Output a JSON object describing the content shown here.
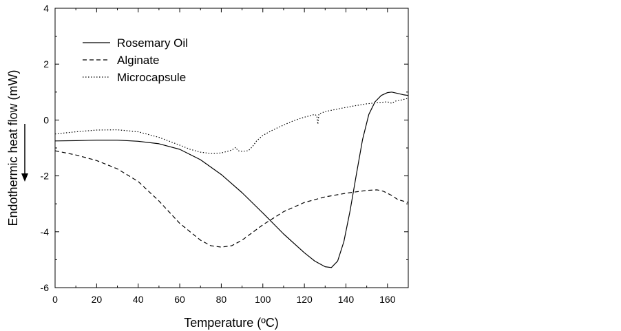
{
  "chart_data": {
    "type": "line",
    "title": "",
    "xlabel": "Temperature (ºC)",
    "ylabel": "Endothermic heat flow (mW)",
    "xlim": [
      0,
      170
    ],
    "ylim": [
      -6,
      4
    ],
    "x_ticks": [
      0,
      20,
      40,
      60,
      80,
      100,
      120,
      140,
      160
    ],
    "y_ticks": [
      -6,
      -4,
      -2,
      0,
      2,
      4
    ],
    "grid": false,
    "legend_position": "top-left",
    "series": [
      {
        "name": "Rosemary Oil",
        "line_style": "solid",
        "color": "#000000",
        "points": [
          [
            0,
            -0.75
          ],
          [
            10,
            -0.74
          ],
          [
            20,
            -0.72
          ],
          [
            30,
            -0.72
          ],
          [
            40,
            -0.76
          ],
          [
            50,
            -0.85
          ],
          [
            60,
            -1.05
          ],
          [
            70,
            -1.42
          ],
          [
            80,
            -1.95
          ],
          [
            90,
            -2.6
          ],
          [
            100,
            -3.33
          ],
          [
            110,
            -4.08
          ],
          [
            120,
            -4.75
          ],
          [
            125,
            -5.05
          ],
          [
            130,
            -5.25
          ],
          [
            133,
            -5.28
          ],
          [
            136,
            -5.05
          ],
          [
            139,
            -4.35
          ],
          [
            142,
            -3.25
          ],
          [
            145,
            -1.95
          ],
          [
            148,
            -0.7
          ],
          [
            151,
            0.2
          ],
          [
            154,
            0.65
          ],
          [
            157,
            0.88
          ],
          [
            160,
            0.98
          ],
          [
            162,
            1.0
          ],
          [
            165,
            0.95
          ],
          [
            168,
            0.9
          ],
          [
            170,
            0.88
          ]
        ]
      },
      {
        "name": "Alginate",
        "line_style": "dashed",
        "color": "#000000",
        "points": [
          [
            0,
            -1.1
          ],
          [
            10,
            -1.25
          ],
          [
            20,
            -1.45
          ],
          [
            30,
            -1.75
          ],
          [
            40,
            -2.2
          ],
          [
            50,
            -2.9
          ],
          [
            60,
            -3.7
          ],
          [
            70,
            -4.3
          ],
          [
            75,
            -4.5
          ],
          [
            80,
            -4.55
          ],
          [
            85,
            -4.5
          ],
          [
            90,
            -4.3
          ],
          [
            100,
            -3.75
          ],
          [
            110,
            -3.28
          ],
          [
            120,
            -2.95
          ],
          [
            130,
            -2.75
          ],
          [
            140,
            -2.62
          ],
          [
            150,
            -2.52
          ],
          [
            155,
            -2.5
          ],
          [
            158,
            -2.55
          ],
          [
            162,
            -2.7
          ],
          [
            165,
            -2.85
          ],
          [
            170,
            -2.95
          ]
        ]
      },
      {
        "name": "Microcapsule",
        "line_style": "dotted",
        "color": "#000000",
        "points": [
          [
            0,
            -0.5
          ],
          [
            10,
            -0.42
          ],
          [
            20,
            -0.36
          ],
          [
            30,
            -0.35
          ],
          [
            40,
            -0.42
          ],
          [
            50,
            -0.62
          ],
          [
            60,
            -0.9
          ],
          [
            65,
            -1.05
          ],
          [
            70,
            -1.15
          ],
          [
            75,
            -1.2
          ],
          [
            80,
            -1.18
          ],
          [
            85,
            -1.08
          ],
          [
            87,
            -0.98
          ],
          [
            88,
            -1.1
          ],
          [
            90,
            -1.12
          ],
          [
            93,
            -1.1
          ],
          [
            95,
            -0.95
          ],
          [
            97,
            -0.75
          ],
          [
            100,
            -0.55
          ],
          [
            105,
            -0.35
          ],
          [
            110,
            -0.18
          ],
          [
            115,
            -0.02
          ],
          [
            120,
            0.1
          ],
          [
            125,
            0.2
          ],
          [
            126,
            0.15
          ],
          [
            126.5,
            -0.15
          ],
          [
            127,
            0.22
          ],
          [
            130,
            0.3
          ],
          [
            135,
            0.38
          ],
          [
            140,
            0.45
          ],
          [
            145,
            0.52
          ],
          [
            150,
            0.58
          ],
          [
            155,
            0.62
          ],
          [
            160,
            0.65
          ],
          [
            162,
            0.6
          ],
          [
            164,
            0.68
          ],
          [
            167,
            0.72
          ],
          [
            170,
            0.78
          ]
        ]
      }
    ]
  }
}
